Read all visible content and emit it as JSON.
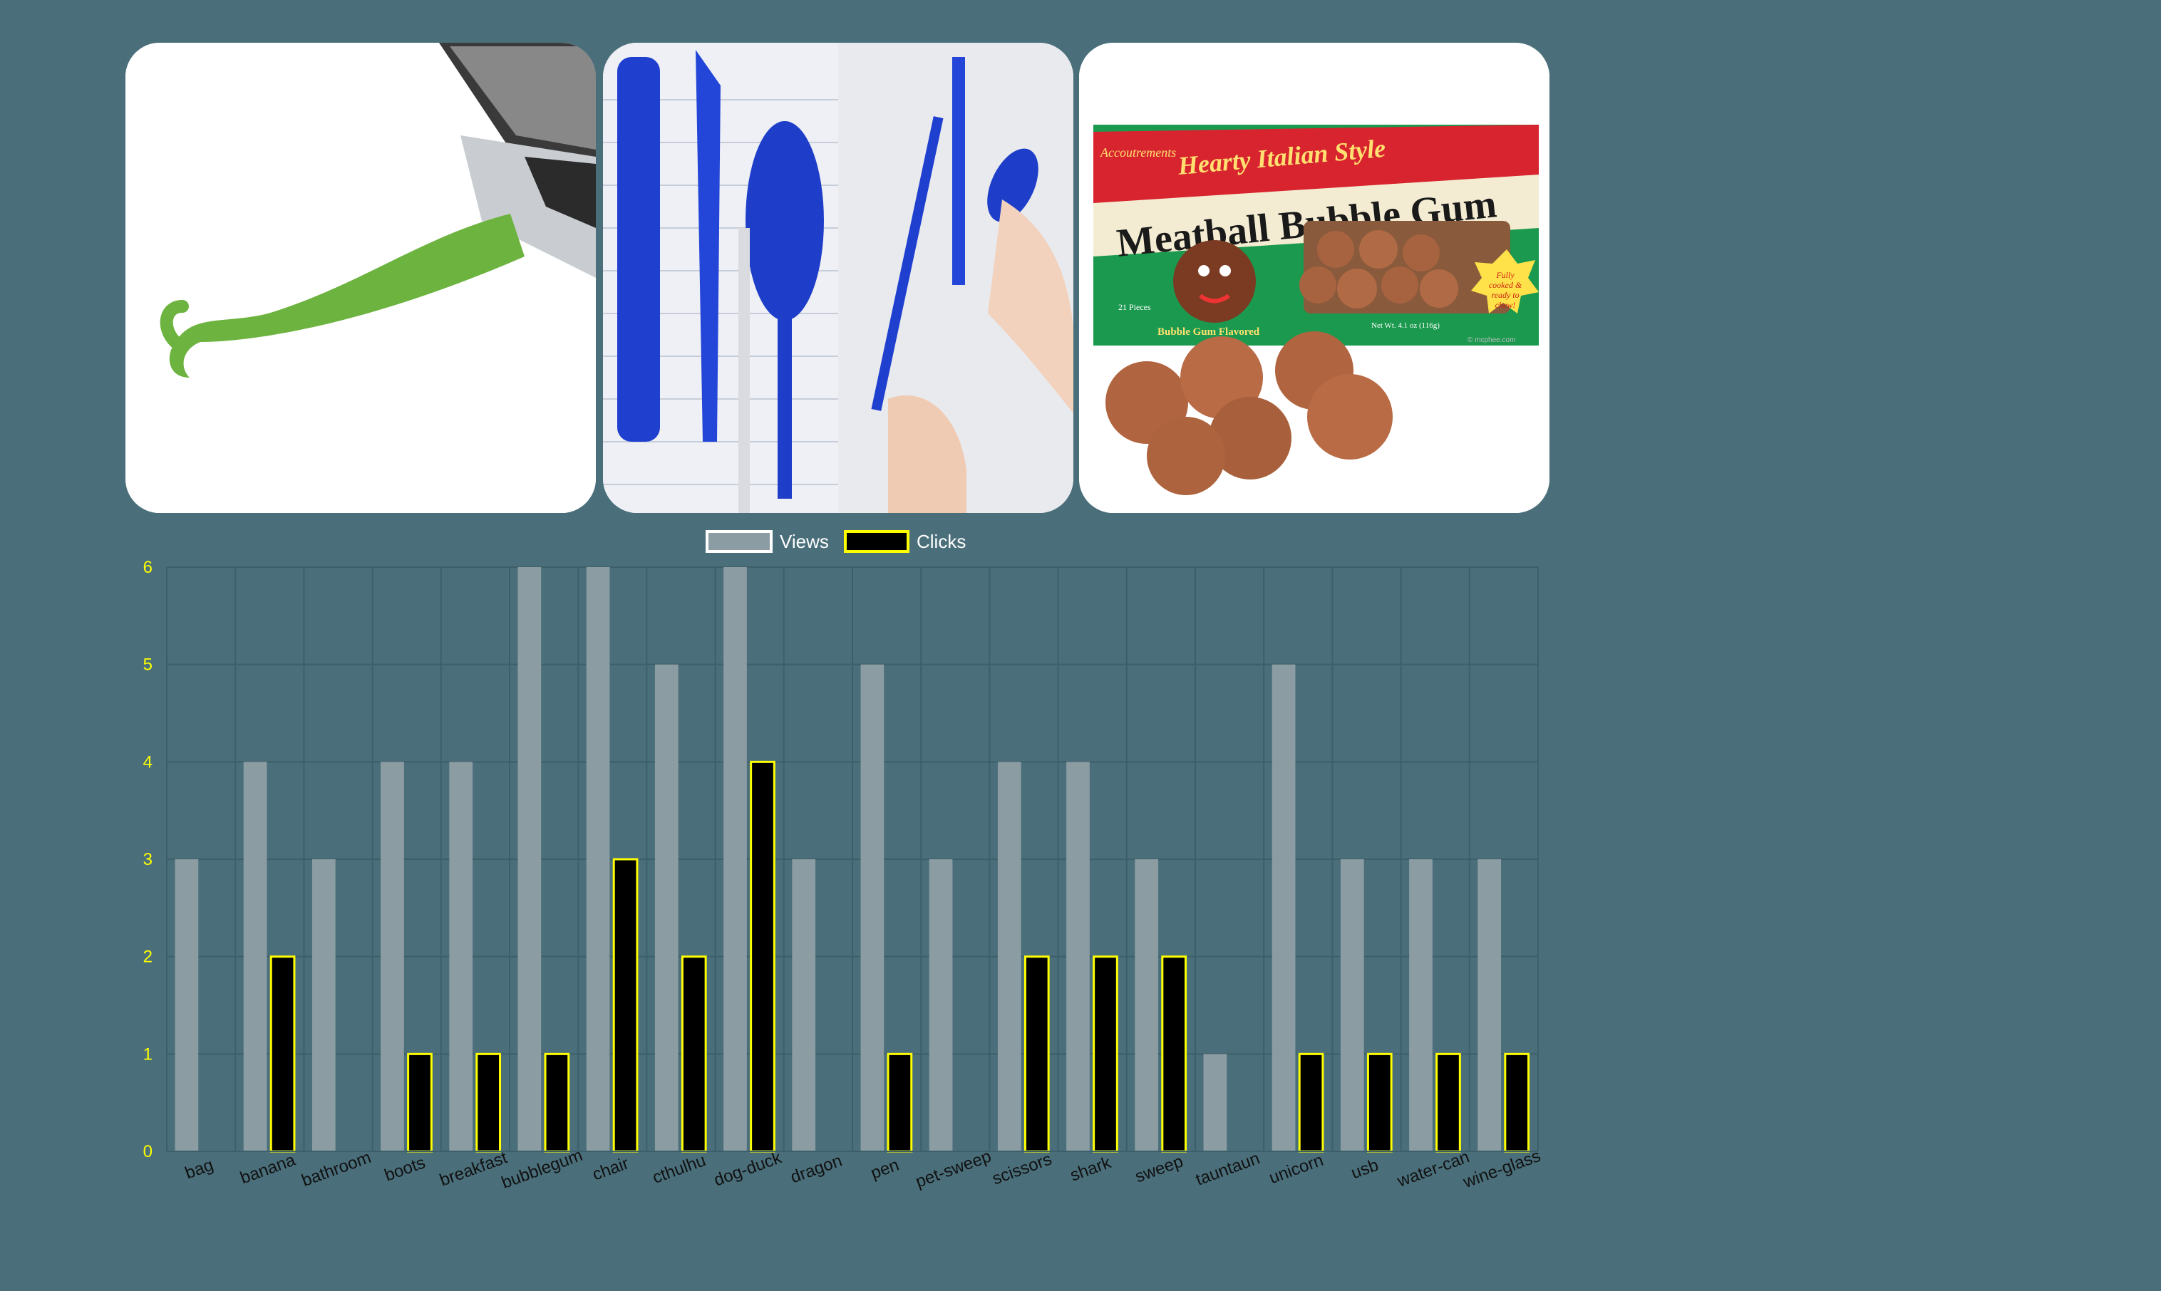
{
  "images": [
    {
      "name": "usb-tentacle-image"
    },
    {
      "name": "blue-cutlery-pens-image"
    },
    {
      "name": "meatball-bubble-gum-image",
      "box_brand": "Accoutrements",
      "box_tagline": "Hearty Italian Style",
      "box_title": "Meatball Bubble Gum",
      "box_pieces": "21 Pieces",
      "box_flavor": "Bubble Gum Flavored",
      "box_weight": "Net Wt. 4.1 oz (116g)",
      "box_badge": [
        "Fully",
        "cooked &",
        "ready to",
        "chew!"
      ],
      "box_copyright": "© mcphee.com"
    }
  ],
  "colors": {
    "background": "#4a6f7b",
    "views_fill": "#8c9ca3",
    "clicks_fill": "#000000",
    "clicks_stroke": "#ffff00",
    "ytick": "#ffff00"
  },
  "chart_data": {
    "type": "bar",
    "title": "",
    "xlabel": "",
    "ylabel": "",
    "ylim": [
      0,
      6
    ],
    "yticks": [
      "0",
      "1",
      "2",
      "3",
      "4",
      "5",
      "6"
    ],
    "grid": true,
    "legend_position": "top-center",
    "categories": [
      "bag",
      "banana",
      "bathroom",
      "boots",
      "breakfast",
      "bubblegum",
      "chair",
      "cthulhu",
      "dog-duck",
      "dragon",
      "pen",
      "pet-sweep",
      "scissors",
      "shark",
      "sweep",
      "tauntaun",
      "unicorn",
      "usb",
      "water-can",
      "wine-glass"
    ],
    "series": [
      {
        "name": "Views",
        "values": [
          3,
          4,
          3,
          4,
          4,
          6,
          6,
          5,
          6,
          3,
          5,
          3,
          4,
          4,
          3,
          1,
          5,
          3,
          3,
          3
        ]
      },
      {
        "name": "Clicks",
        "values": [
          0,
          2,
          0,
          1,
          1,
          1,
          3,
          2,
          4,
          0,
          1,
          0,
          2,
          2,
          2,
          0,
          1,
          1,
          1,
          1
        ]
      }
    ]
  }
}
